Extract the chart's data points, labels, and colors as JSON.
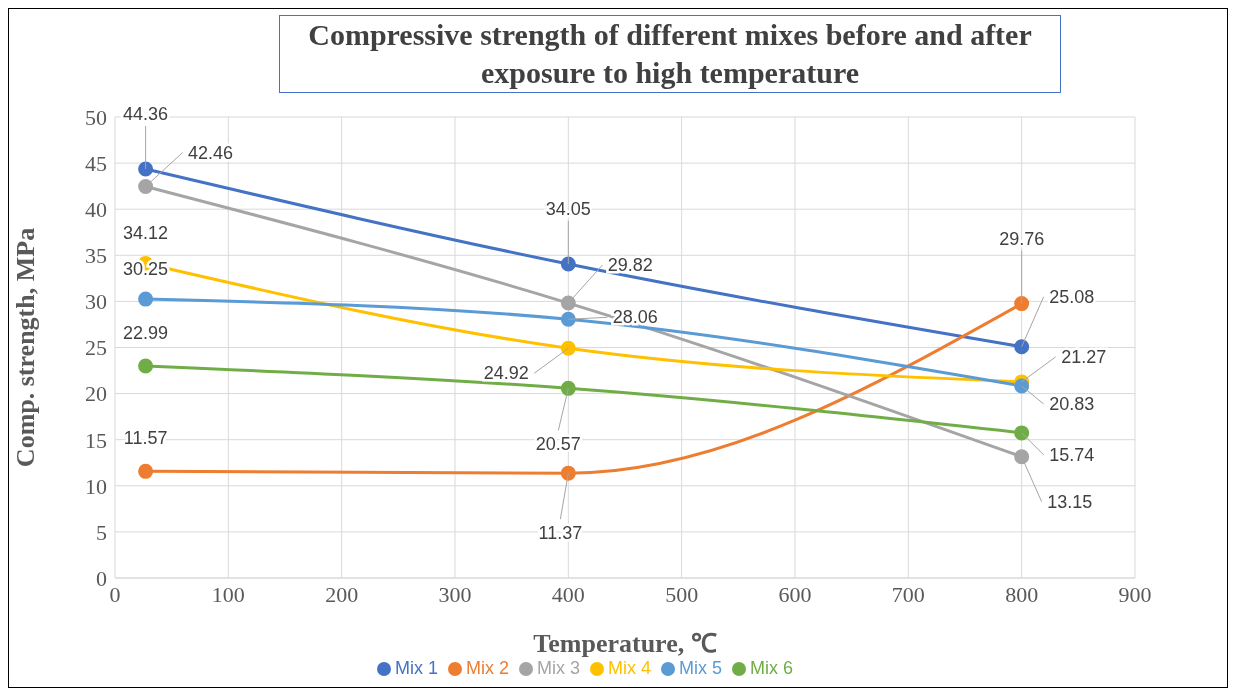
{
  "chart_data": {
    "type": "line",
    "title": "Compressive strength of different mixes before and after exposure to high temperature",
    "xlabel": "Temperature, ℃",
    "ylabel": "Comp. strength, MPa",
    "x": [
      27,
      400,
      800
    ],
    "series": [
      {
        "name": "Mix 1",
        "color": "#4472c4",
        "values": [
          44.36,
          34.05,
          25.08
        ]
      },
      {
        "name": "Mix 2",
        "color": "#ed7d31",
        "values": [
          11.57,
          11.37,
          29.76
        ]
      },
      {
        "name": "Mix 3",
        "color": "#a5a5a5",
        "values": [
          42.46,
          29.82,
          13.15
        ]
      },
      {
        "name": "Mix 4",
        "color": "#ffc000",
        "values": [
          34.12,
          24.92,
          21.27
        ]
      },
      {
        "name": "Mix 5",
        "color": "#5b9bd5",
        "values": [
          30.25,
          28.06,
          20.83
        ]
      },
      {
        "name": "Mix 6",
        "color": "#70ad47",
        "values": [
          22.99,
          20.57,
          15.74
        ]
      }
    ],
    "xlim": [
      0,
      900
    ],
    "xticks": [
      0,
      100,
      200,
      300,
      400,
      500,
      600,
      700,
      800,
      900
    ],
    "ylim": [
      0,
      50
    ],
    "yticks": [
      0,
      5,
      10,
      15,
      20,
      25,
      30,
      35,
      40,
      45,
      50
    ],
    "grid": true,
    "legend": "bottom",
    "marker": "circle",
    "line_style": "solid",
    "data_labels": true
  }
}
